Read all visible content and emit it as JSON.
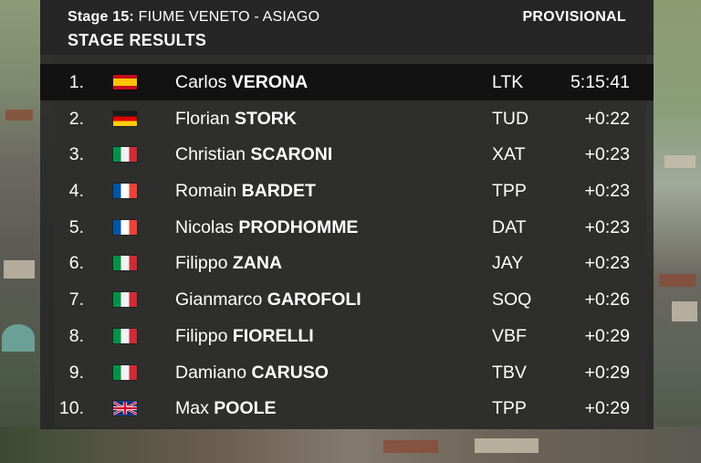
{
  "header": {
    "stage_prefix": "Stage 15:",
    "route": "FIUME VENETO - ASIAGO",
    "title": "STAGE RESULTS",
    "status": "PROVISIONAL"
  },
  "results": [
    {
      "position": "1.",
      "flag": "es",
      "first": "Carlos",
      "last": "VERONA",
      "team": "LTK",
      "time": "5:15:41"
    },
    {
      "position": "2.",
      "flag": "de",
      "first": "Florian",
      "last": "STORK",
      "team": "TUD",
      "time": "+0:22"
    },
    {
      "position": "3.",
      "flag": "it",
      "first": "Christian",
      "last": "SCARONI",
      "team": "XAT",
      "time": "+0:23"
    },
    {
      "position": "4.",
      "flag": "fr",
      "first": "Romain",
      "last": "BARDET",
      "team": "TPP",
      "time": "+0:23"
    },
    {
      "position": "5.",
      "flag": "fr",
      "first": "Nicolas",
      "last": "PRODHOMME",
      "team": "DAT",
      "time": "+0:23"
    },
    {
      "position": "6.",
      "flag": "it",
      "first": "Filippo",
      "last": "ZANA",
      "team": "JAY",
      "time": "+0:23"
    },
    {
      "position": "7.",
      "flag": "it",
      "first": "Gianmarco",
      "last": "GAROFOLI",
      "team": "SOQ",
      "time": "+0:26"
    },
    {
      "position": "8.",
      "flag": "it",
      "first": "Filippo",
      "last": "FIORELLI",
      "team": "VBF",
      "time": "+0:29"
    },
    {
      "position": "9.",
      "flag": "it",
      "first": "Damiano",
      "last": "CARUSO",
      "team": "TBV",
      "time": "+0:29"
    },
    {
      "position": "10.",
      "flag": "gb",
      "first": "Max",
      "last": "POOLE",
      "team": "TPP",
      "time": "+0:29"
    }
  ],
  "colors": {
    "panel": "#262626",
    "leader_row": "#121212",
    "text": "#ffffff"
  }
}
